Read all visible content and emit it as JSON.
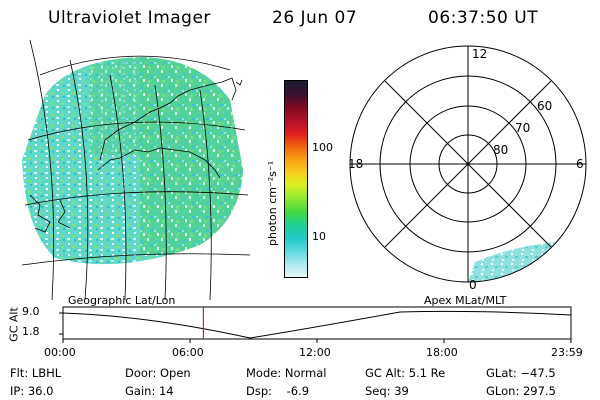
{
  "header": {
    "title": "Ultraviolet Imager",
    "date": "26 Jun 07",
    "time": "06:37:50 UT"
  },
  "colorbar": {
    "unit_label": "photon cm⁻²s⁻¹",
    "ticks": [
      "100",
      "10"
    ],
    "colors": [
      "#1a1a2e",
      "#3a1030",
      "#7a0a20",
      "#b0102a",
      "#e02020",
      "#f06010",
      "#f8a010",
      "#f8d020",
      "#d8f020",
      "#90e830",
      "#40d840",
      "#20d090",
      "#20c8c8",
      "#60d8e0",
      "#a8e8f0",
      "#e8f8f8"
    ]
  },
  "polar": {
    "mlt_labels": {
      "top": "12",
      "left": "18",
      "right": "6",
      "bottom": "0"
    },
    "lat_labels": [
      "60",
      "70",
      "80"
    ]
  },
  "timeline": {
    "left_title": "Geographic Lat/Lon",
    "right_title": "Apex MLat/MLT",
    "y_axis_label": "GC Alt",
    "y_ticks": [
      "9.0",
      "1.8"
    ],
    "x_ticks": [
      "00:00",
      "06:00",
      "12:00",
      "18:00",
      "23:59"
    ],
    "current_hour": 6.63,
    "marker_color": "#cc0000"
  },
  "info": {
    "flt": "Flt: LBHL",
    "ip": "IP: 36.0",
    "door": "Door: Open",
    "gain": "Gain: 14",
    "mode": "Mode: Normal",
    "dsp": "Dsp:    -6.9",
    "gcalt": "GC Alt: 5.1 Re",
    "seq": "Seq: 39",
    "glat": "GLat: −47.5",
    "glon": "GLon: 297.5"
  }
}
